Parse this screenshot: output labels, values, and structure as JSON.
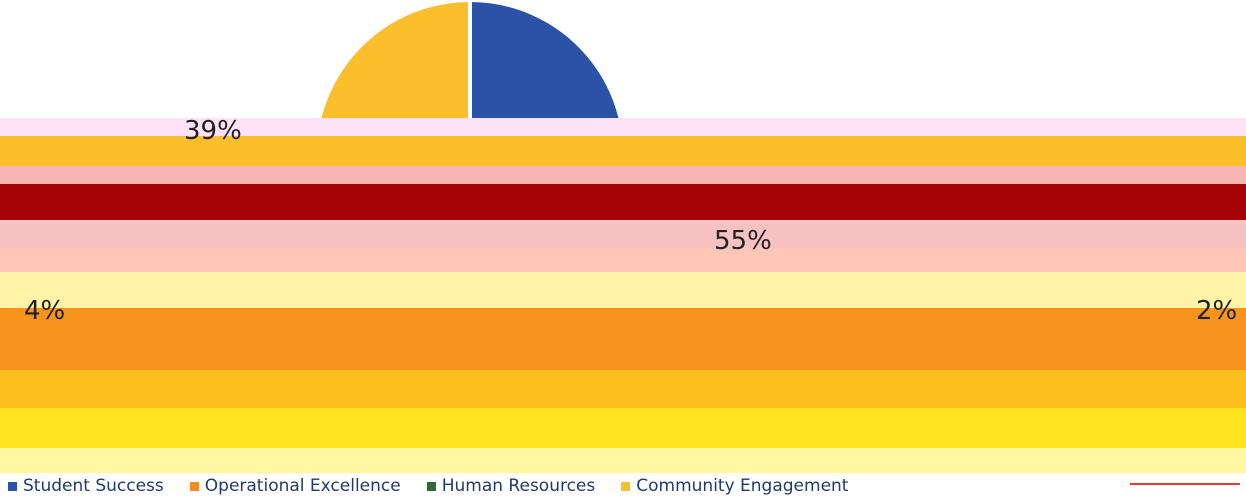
{
  "chart_data": {
    "type": "pie",
    "title": "",
    "labels": [
      "39%",
      "55%",
      "4%",
      "2%"
    ],
    "values": [
      39,
      55,
      4,
      2
    ],
    "legend": [
      "Student Success",
      "Operational Excellence",
      "Human Resources",
      "Community Engagement"
    ],
    "legend_position": "bottom",
    "colors": [
      "#2a53a8",
      "#f08d2b",
      "#2e6b38",
      "#f0c22e"
    ],
    "slice_colors_visible": [
      "#fbbf2e",
      "#2a53a8",
      "#2e6b38",
      "#8a1010"
    ]
  },
  "overlay": {
    "band_colors": [
      "#ffe2f7",
      "#fcbf2c",
      "#f9b4b4",
      "#a50303",
      "#f9c2c2",
      "#ffc7b8",
      "#fff3a8",
      "#f7941d",
      "#fdbf1e",
      "#fde31d",
      "#fff7a4"
    ]
  }
}
